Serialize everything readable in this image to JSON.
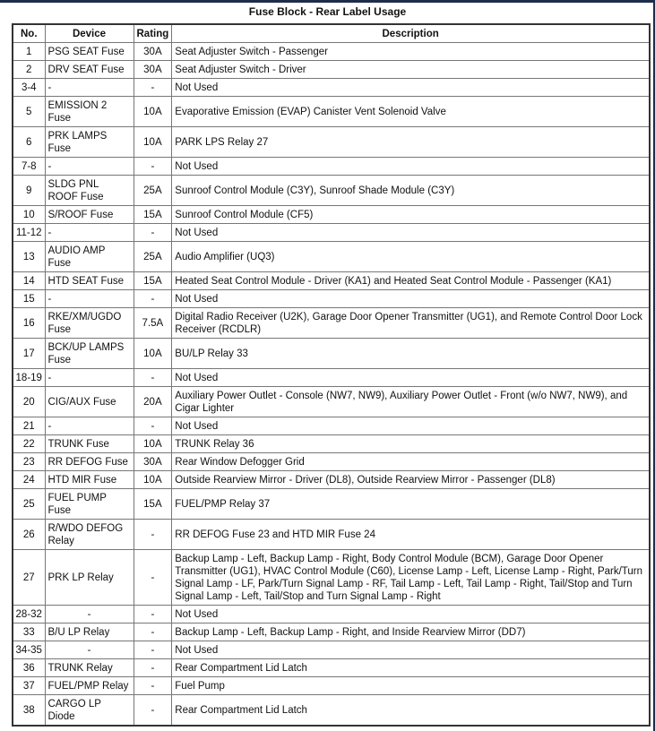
{
  "title": "Fuse Block - Rear Label Usage",
  "columns": [
    "No.",
    "Device",
    "Rating",
    "Description"
  ],
  "rows": [
    {
      "no": "1",
      "device": "PSG SEAT Fuse",
      "rating": "30A",
      "description": "Seat Adjuster Switch - Passenger",
      "lines": 1
    },
    {
      "no": "2",
      "device": "DRV SEAT Fuse",
      "rating": "30A",
      "description": "Seat Adjuster Switch - Driver",
      "lines": 1
    },
    {
      "no": "3-4",
      "device": "-",
      "rating": "-",
      "description": "Not Used",
      "lines": 1
    },
    {
      "no": "5",
      "device": "EMISSION 2 Fuse",
      "rating": "10A",
      "description": "Evaporative Emission (EVAP) Canister Vent Solenoid Valve",
      "lines": 2
    },
    {
      "no": "6",
      "device": "PRK LAMPS Fuse",
      "rating": "10A",
      "description": "PARK LPS Relay 27",
      "lines": 2
    },
    {
      "no": "7-8",
      "device": "-",
      "rating": "-",
      "description": "Not Used",
      "lines": 1
    },
    {
      "no": "9",
      "device": "SLDG PNL ROOF Fuse",
      "rating": "25A",
      "description": "Sunroof Control Module (C3Y), Sunroof Shade Module (C3Y)",
      "lines": 2
    },
    {
      "no": "10",
      "device": "S/ROOF Fuse",
      "rating": "15A",
      "description": "Sunroof Control Module (CF5)",
      "lines": 1
    },
    {
      "no": "11-12",
      "device": "-",
      "rating": "-",
      "description": "Not Used",
      "lines": 1
    },
    {
      "no": "13",
      "device": "AUDIO AMP Fuse",
      "rating": "25A",
      "description": "Audio Amplifier (UQ3)",
      "lines": 2
    },
    {
      "no": "14",
      "device": "HTD SEAT Fuse",
      "rating": "15A",
      "description": "Heated Seat Control Module - Driver (KA1) and Heated Seat Control Module - Passenger (KA1)",
      "lines": 1
    },
    {
      "no": "15",
      "device": "-",
      "rating": "-",
      "description": "Not Used",
      "lines": 1
    },
    {
      "no": "16",
      "device": "RKE/XM/UGDO Fuse",
      "rating": "7.5A",
      "description": "Digital Radio Receiver (U2K), Garage Door Opener Transmitter (UG1), and Remote Control Door Lock Receiver (RCDLR)",
      "lines": 2
    },
    {
      "no": "17",
      "device": "BCK/UP LAMPS Fuse",
      "rating": "10A",
      "description": "BU/LP Relay 33",
      "lines": 2
    },
    {
      "no": "18-19",
      "device": "-",
      "rating": "-",
      "description": "Not Used",
      "lines": 1
    },
    {
      "no": "20",
      "device": "CIG/AUX Fuse",
      "rating": "20A",
      "description": "Auxiliary Power Outlet - Console (NW7, NW9), Auxiliary Power Outlet - Front (w/o NW7, NW9), and Cigar Lighter",
      "lines": 2
    },
    {
      "no": "21",
      "device": "-",
      "rating": "-",
      "description": "Not Used",
      "lines": 1
    },
    {
      "no": "22",
      "device": "TRUNK Fuse",
      "rating": "10A",
      "description": "TRUNK Relay 36",
      "lines": 1
    },
    {
      "no": "23",
      "device": "RR DEFOG Fuse",
      "rating": "30A",
      "description": "Rear Window Defogger Grid",
      "lines": 1
    },
    {
      "no": "24",
      "device": "HTD MIR Fuse",
      "rating": "10A",
      "description": "Outside Rearview Mirror - Driver (DL8), Outside Rearview Mirror - Passenger (DL8)",
      "lines": 1
    },
    {
      "no": "25",
      "device": "FUEL PUMP Fuse",
      "rating": "15A",
      "description": "FUEL/PMP Relay 37",
      "lines": 2
    },
    {
      "no": "26",
      "device": "R/WDO DEFOG Relay",
      "rating": "-",
      "description": "RR DEFOG Fuse 23 and HTD MIR Fuse 24",
      "lines": 2
    },
    {
      "no": "27",
      "device": "PRK LP Relay",
      "rating": "-",
      "description": "Backup Lamp - Left, Backup Lamp - Right, Body Control Module (BCM), Garage Door Opener Transmitter (UG1), HVAC Control Module (C60), License Lamp - Left, License Lamp - Right, Park/Turn Signal Lamp - LF, Park/Turn Signal Lamp - RF, Tail Lamp - Left, Tail Lamp - Right, Tail/Stop and Turn Signal Lamp - Left, Tail/Stop and Turn Signal Lamp - Right",
      "lines": 4
    },
    {
      "no": "28-32",
      "device": "-",
      "rating": "-",
      "description": "Not Used",
      "lines": 1,
      "center_device": true
    },
    {
      "no": "33",
      "device": "B/U LP Relay",
      "rating": "-",
      "description": "Backup Lamp - Left, Backup Lamp - Right, and Inside Rearview Mirror (DD7)",
      "lines": 1
    },
    {
      "no": "34-35",
      "device": "-",
      "rating": "-",
      "description": "Not Used",
      "lines": 1,
      "center_device": true
    },
    {
      "no": "36",
      "device": "TRUNK Relay",
      "rating": "-",
      "description": "Rear Compartment Lid Latch",
      "lines": 1
    },
    {
      "no": "37",
      "device": "FUEL/PMP Relay",
      "rating": "-",
      "description": "Fuel Pump",
      "lines": 1
    },
    {
      "no": "38",
      "device": "CARGO LP Diode",
      "rating": "-",
      "description": "Rear Compartment Lid Latch",
      "lines": 2
    }
  ]
}
